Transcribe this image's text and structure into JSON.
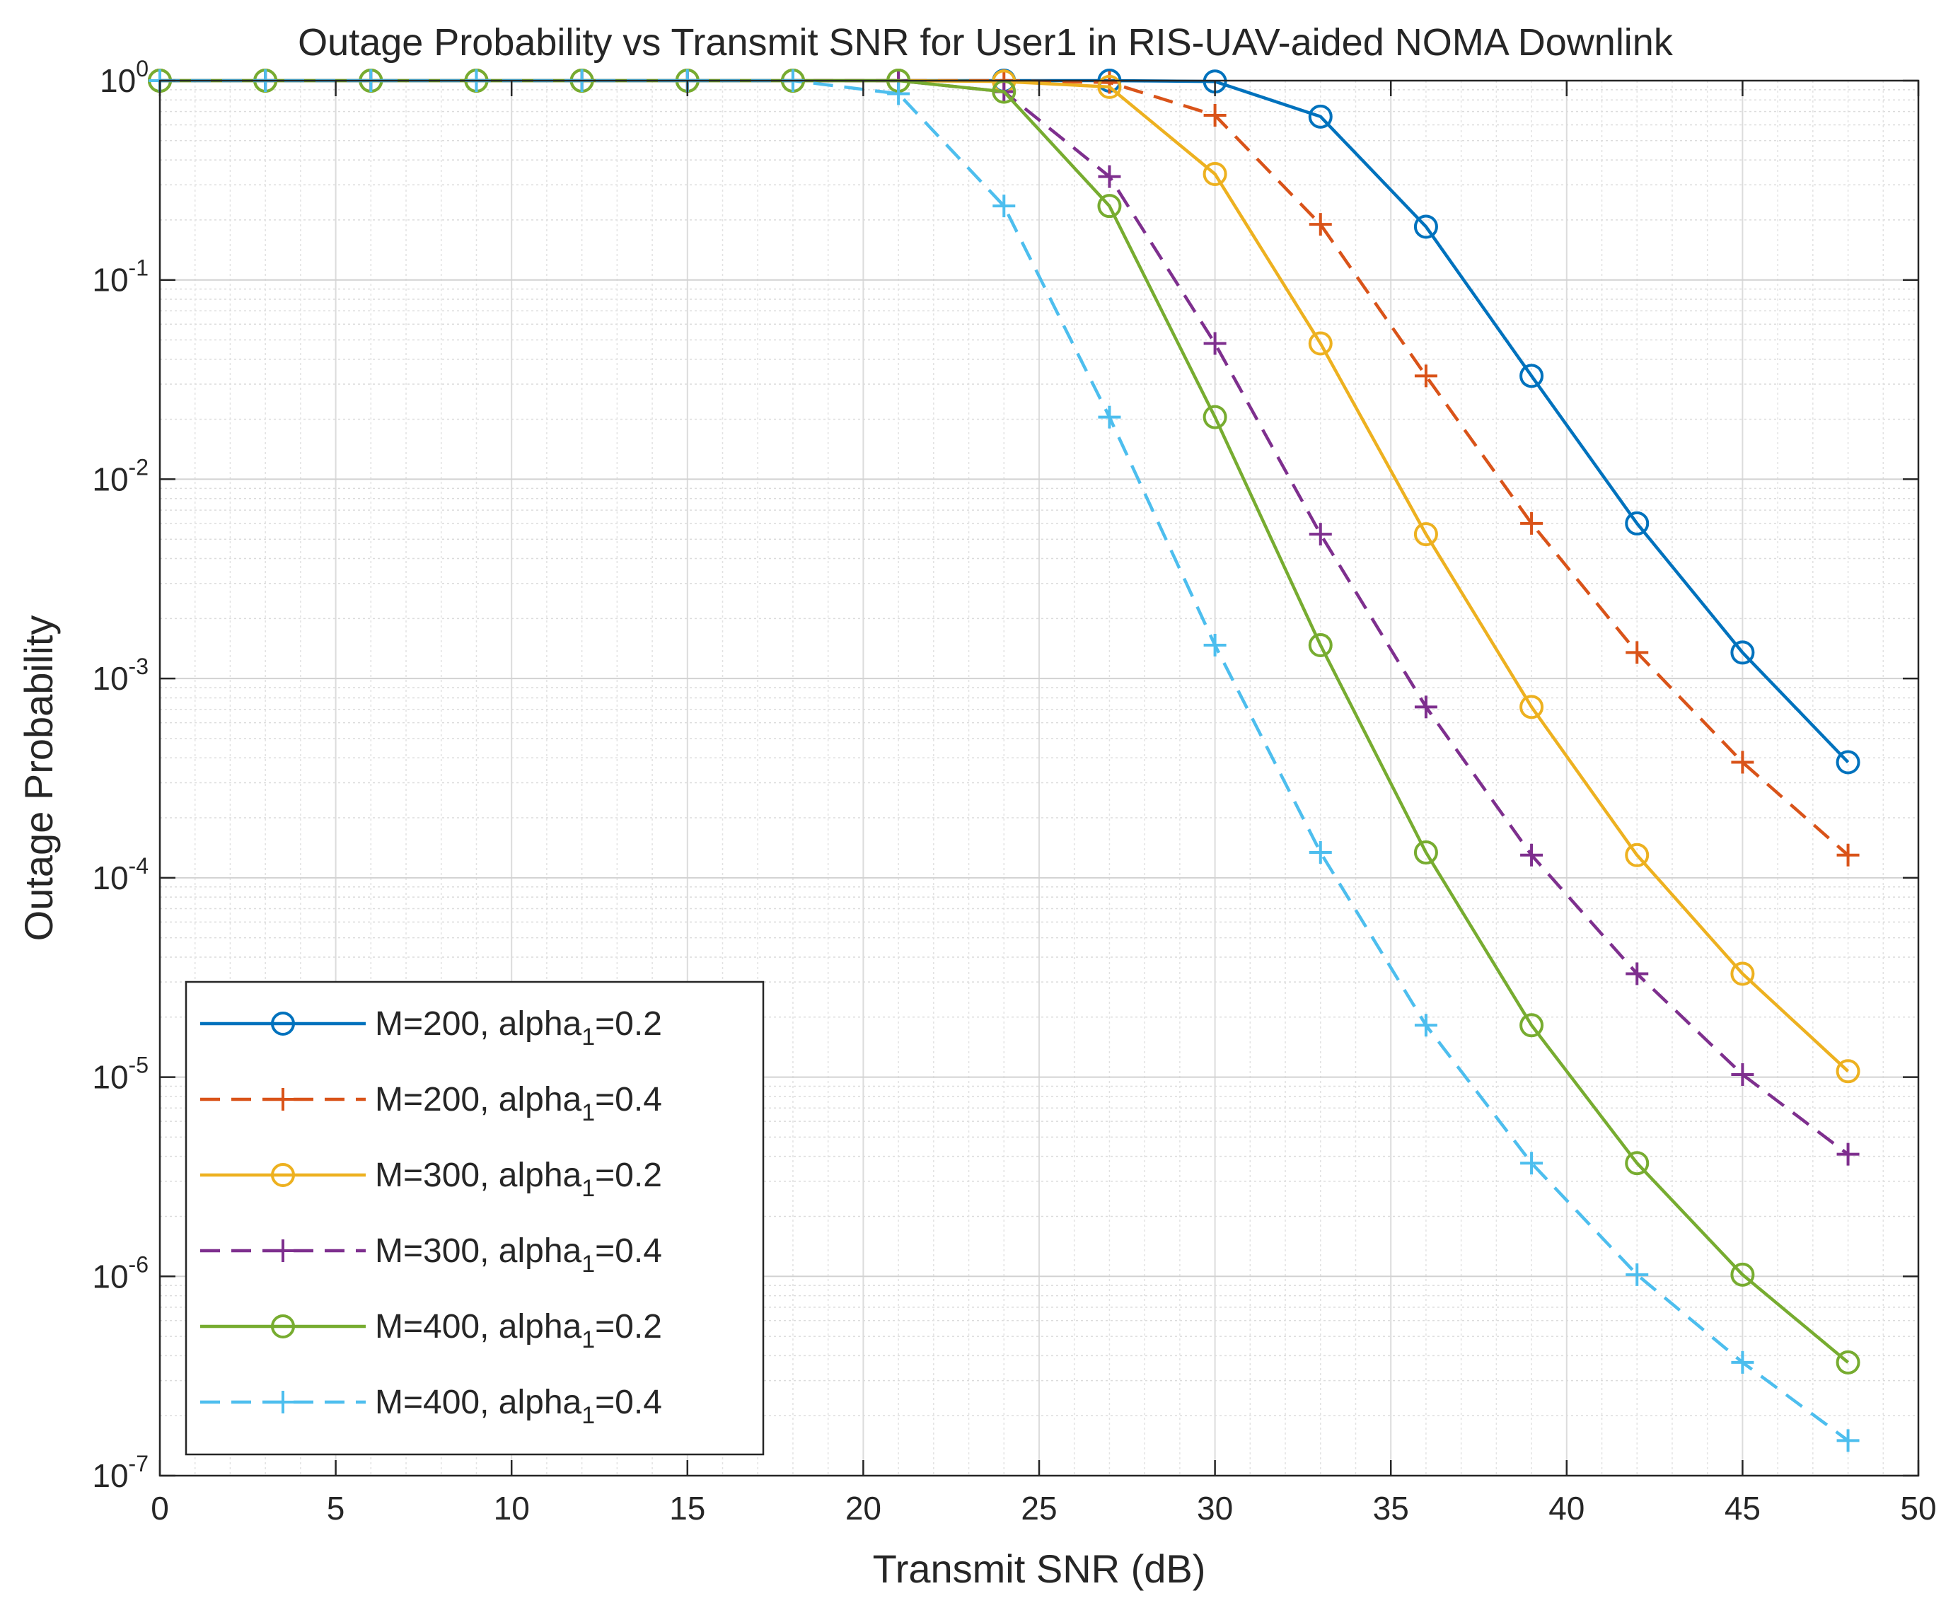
{
  "chart_data": {
    "type": "line",
    "title": "Outage Probability vs Transmit SNR for User1 in RIS-UAV-aided NOMA Downlink",
    "xlabel": "Transmit SNR (dB)",
    "ylabel": "Outage Probability",
    "xlim": [
      0,
      50
    ],
    "ylim": [
      1e-07,
      1
    ],
    "yscale": "log",
    "grid": true,
    "minor_grid": true,
    "legend_location": "bottom-left",
    "x_ticks": [
      {
        "value": 0,
        "label": "0"
      },
      {
        "value": 5,
        "label": "5"
      },
      {
        "value": 10,
        "label": "10"
      },
      {
        "value": 15,
        "label": "15"
      },
      {
        "value": 20,
        "label": "20"
      },
      {
        "value": 25,
        "label": "25"
      },
      {
        "value": 30,
        "label": "30"
      },
      {
        "value": 35,
        "label": "35"
      },
      {
        "value": 40,
        "label": "40"
      },
      {
        "value": 45,
        "label": "45"
      },
      {
        "value": 50,
        "label": "50"
      }
    ],
    "y_ticks": [
      {
        "exp": 0,
        "base": "10",
        "sup": "0"
      },
      {
        "exp": -1,
        "base": "10",
        "sup": "-1"
      },
      {
        "exp": -2,
        "base": "10",
        "sup": "-2"
      },
      {
        "exp": -3,
        "base": "10",
        "sup": "-3"
      },
      {
        "exp": -4,
        "base": "10",
        "sup": "-4"
      },
      {
        "exp": -5,
        "base": "10",
        "sup": "-5"
      },
      {
        "exp": -6,
        "base": "10",
        "sup": "-6"
      },
      {
        "exp": -7,
        "base": "10",
        "sup": "-7"
      }
    ],
    "x": [
      0,
      3,
      6,
      9,
      12,
      15,
      18,
      21,
      24,
      27,
      30,
      33,
      36,
      39,
      42,
      45,
      48
    ],
    "series": [
      {
        "name": "M=200, alpha1=0.2",
        "legend": {
          "prefix": "M=200, alpha",
          "sub": "1",
          "suffix": "=0.2"
        },
        "color": "#0072BD",
        "dash": "solid",
        "marker": "circle",
        "values": [
          1,
          1,
          1,
          1,
          1,
          1,
          1,
          1,
          1,
          1,
          0.99,
          0.66,
          0.185,
          0.033,
          0.006,
          0.00135,
          0.00038
        ]
      },
      {
        "name": "M=200, alpha1=0.4",
        "legend": {
          "prefix": "M=200, alpha",
          "sub": "1",
          "suffix": "=0.4"
        },
        "color": "#D95319",
        "dash": "dashed",
        "marker": "plus",
        "values": [
          1,
          1,
          1,
          1,
          1,
          1,
          1,
          1,
          1,
          0.98,
          0.67,
          0.19,
          0.033,
          0.006,
          0.00135,
          0.00038,
          0.00013
        ]
      },
      {
        "name": "M=300, alpha1=0.2",
        "legend": {
          "prefix": "M=300, alpha",
          "sub": "1",
          "suffix": "=0.2"
        },
        "color": "#EDB120",
        "dash": "solid",
        "marker": "circle",
        "values": [
          1,
          1,
          1,
          1,
          1,
          1,
          1,
          1,
          0.99,
          0.93,
          0.34,
          0.048,
          0.0053,
          0.00072,
          0.00013,
          3.3e-05,
          1.07e-05
        ]
      },
      {
        "name": "M=300, alpha1=0.4",
        "legend": {
          "prefix": "M=300, alpha",
          "sub": "1",
          "suffix": "=0.4"
        },
        "color": "#7E2F8E",
        "dash": "dashed",
        "marker": "plus",
        "values": [
          1,
          1,
          1,
          1,
          1,
          1,
          1,
          1,
          0.88,
          0.33,
          0.048,
          0.0053,
          0.00072,
          0.00013,
          3.3e-05,
          1.03e-05,
          4.1e-06
        ]
      },
      {
        "name": "M=400, alpha1=0.2",
        "legend": {
          "prefix": "M=400, alpha",
          "sub": "1",
          "suffix": "=0.2"
        },
        "color": "#77AC30",
        "dash": "solid",
        "marker": "circle",
        "values": [
          1,
          1,
          1,
          1,
          1,
          1,
          1,
          1,
          0.88,
          0.235,
          0.0205,
          0.00147,
          0.000134,
          1.82e-05,
          3.7e-06,
          1.02e-06,
          3.7e-07
        ]
      },
      {
        "name": "M=400, alpha1=0.4",
        "legend": {
          "prefix": "M=400, alpha",
          "sub": "1",
          "suffix": "=0.4"
        },
        "color": "#4DBEEE",
        "dash": "dashed",
        "marker": "plus",
        "values": [
          1,
          1,
          1,
          1,
          1,
          1,
          1,
          0.86,
          0.235,
          0.0205,
          0.00147,
          0.000134,
          1.82e-05,
          3.7e-06,
          1.02e-06,
          3.7e-07,
          1.5e-07
        ]
      }
    ]
  }
}
